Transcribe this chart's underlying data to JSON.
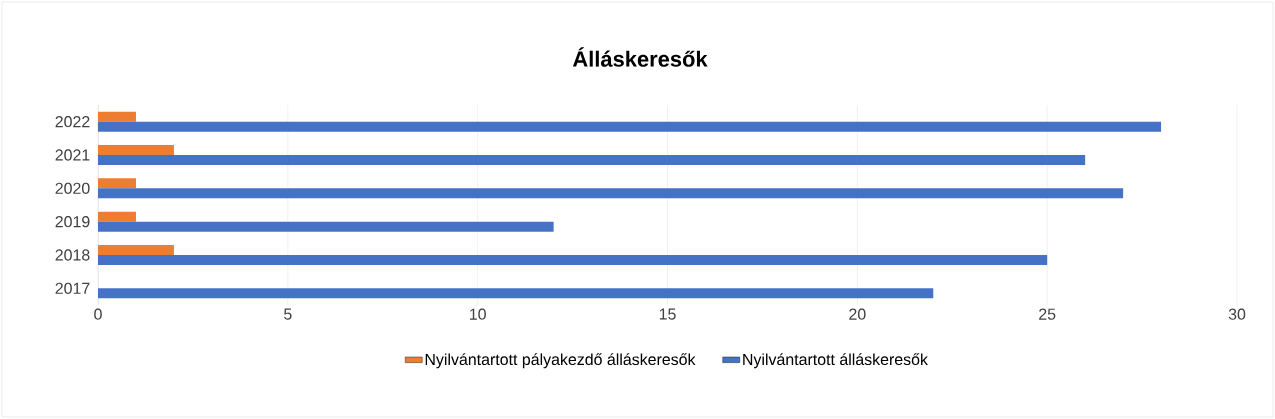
{
  "chart_data": {
    "type": "bar",
    "orientation": "horizontal",
    "title": "Álláskeresők",
    "categories": [
      "2022",
      "2021",
      "2020",
      "2019",
      "2018",
      "2017"
    ],
    "series": [
      {
        "name": "Nyilvántartott pályakezdő álláskeresők",
        "color": "#ed7d31",
        "values": [
          1,
          2,
          1,
          1,
          2,
          null
        ]
      },
      {
        "name": "Nyilvántartott álláskeresők",
        "color": "#4472c4",
        "values": [
          28,
          26,
          27,
          12,
          25,
          22
        ]
      }
    ],
    "xlim": [
      0,
      30
    ],
    "xticks": [
      0,
      5,
      10,
      15,
      20,
      25,
      30
    ],
    "grid": "x",
    "legend": "bottom"
  }
}
